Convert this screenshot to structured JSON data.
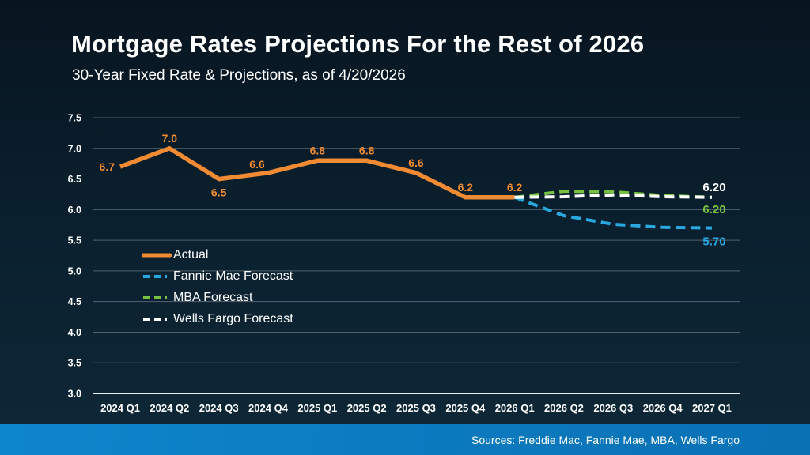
{
  "slide": {
    "title": "Mortgage Rates Projections For the Rest of 2026",
    "subtitle": "30-Year Fixed Rate & Projections, as of 4/20/2026",
    "footer_sources": "Sources: Freddie Mac, Fannie Mae, MBA, Wells Fargo"
  },
  "colors": {
    "background_top": "#071520",
    "background_bottom": "#0E2736",
    "text": "#FFFFFF",
    "gridline": "#53626E",
    "axis_line": "#EAEFF3",
    "data_label_actual": "#F08A33",
    "footer_bar_left": "#0E86CC",
    "footer_bar_right": "#0A70B4"
  },
  "chart_data": {
    "type": "line",
    "title": "Mortgage Rates Projections For the Rest of 2026",
    "subtitle": "30-Year Fixed Rate & Projections, as of 4/20/2026",
    "categories": [
      "2024 Q1",
      "2024 Q2",
      "2024 Q3",
      "2024 Q4",
      "2025 Q1",
      "2025 Q2",
      "2025 Q3",
      "2025 Q4",
      "2026 Q1",
      "2026 Q2",
      "2026 Q3",
      "2026 Q4",
      "2027 Q1"
    ],
    "ylim": [
      3.0,
      7.5
    ],
    "ytick_step": 0.5,
    "ytick_labels": [
      "3.0",
      "3.5",
      "4.0",
      "4.5",
      "5.0",
      "5.5",
      "6.0",
      "6.5",
      "7.0",
      "7.5"
    ],
    "grid": true,
    "legend_position": "inside-left",
    "series": [
      {
        "name": "Actual",
        "color": "#F08A33",
        "style": "solid",
        "width": 5.5,
        "values": [
          6.7,
          7.0,
          6.5,
          6.6,
          6.8,
          6.8,
          6.6,
          6.2,
          6.2,
          null,
          null,
          null,
          null
        ],
        "point_labels": [
          "6.7",
          "7.0",
          "6.5",
          "6.6",
          "6.8",
          "6.8",
          "6.6",
          "6.2",
          "6.2"
        ],
        "end_label": null
      },
      {
        "name": "Fannie Mae Forecast",
        "color": "#29A8E0",
        "style": "dashed",
        "width": 4,
        "values": [
          null,
          null,
          null,
          null,
          null,
          null,
          null,
          null,
          6.2,
          5.9,
          5.76,
          5.71,
          5.7
        ],
        "point_labels": null,
        "end_label": "5.70"
      },
      {
        "name": "MBA Forecast",
        "color": "#79C142",
        "style": "dashed",
        "width": 4,
        "values": [
          null,
          null,
          null,
          null,
          null,
          null,
          null,
          null,
          6.2,
          6.3,
          6.29,
          6.23,
          6.2
        ],
        "point_labels": null,
        "end_label": "6.20"
      },
      {
        "name": "Wells Fargo Forecast",
        "color": "#FFFFFF",
        "style": "dashed",
        "width": 4,
        "values": [
          null,
          null,
          null,
          null,
          null,
          null,
          null,
          null,
          6.2,
          6.21,
          6.24,
          6.21,
          6.2
        ],
        "point_labels": null,
        "end_label": "6.20"
      }
    ]
  }
}
